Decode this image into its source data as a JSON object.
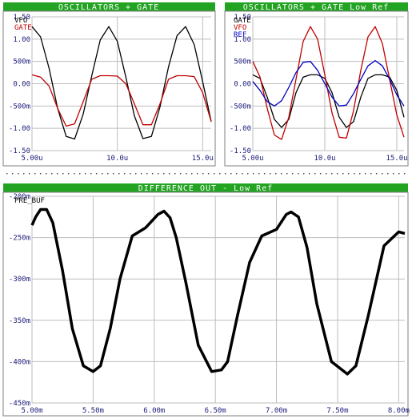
{
  "colors": {
    "title_bar": "#22a322",
    "title_text": "#ffffff",
    "tick_label": "#1a1a7a",
    "grid": "#bdbdbd",
    "frame": "#7f7f7f"
  },
  "chart_data": [
    {
      "id": "osc-gate",
      "type": "line",
      "title": "OSCILLATORS + GATE",
      "xlim": [
        5.0,
        15.5
      ],
      "ylim": [
        -1.5,
        1.5
      ],
      "xticks": [
        5.0,
        10.0,
        15.0
      ],
      "xtick_labels": [
        "5.00u",
        "10.0u",
        "15.0u"
      ],
      "yticks": [
        1.5,
        1.0,
        0.5,
        0.0,
        -0.5,
        -1.0,
        -1.5
      ],
      "ytick_labels": [
        "1.50",
        "1.00",
        "500m",
        "0.00",
        "-500m",
        "-1.00",
        "-1.50"
      ],
      "series": [
        {
          "name": "VFO",
          "color": "#000000",
          "x": [
            5.0,
            5.5,
            6.0,
            6.5,
            7.0,
            7.5,
            8.0,
            8.5,
            9.0,
            9.5,
            10.0,
            10.5,
            11.0,
            11.5,
            12.0,
            12.5,
            13.0,
            13.5,
            14.0,
            14.5,
            15.0,
            15.5
          ],
          "y": [
            1.28,
            1.05,
            0.35,
            -0.55,
            -1.18,
            -1.24,
            -0.68,
            0.18,
            0.98,
            1.28,
            0.95,
            0.15,
            -0.72,
            -1.23,
            -1.18,
            -0.52,
            0.38,
            1.08,
            1.28,
            0.88,
            0.05,
            -0.85
          ]
        },
        {
          "name": "GATE",
          "color": "#c00000",
          "x": [
            5.0,
            5.5,
            6.0,
            6.5,
            7.0,
            7.5,
            8.0,
            8.5,
            9.0,
            9.5,
            10.0,
            10.5,
            11.0,
            11.5,
            12.0,
            12.5,
            13.0,
            13.5,
            14.0,
            14.5,
            15.0,
            15.5
          ],
          "y": [
            0.2,
            0.15,
            -0.05,
            -0.55,
            -0.95,
            -0.9,
            -0.4,
            0.1,
            0.18,
            0.18,
            0.17,
            0.0,
            -0.45,
            -0.92,
            -0.92,
            -0.45,
            0.1,
            0.18,
            0.18,
            0.16,
            -0.2,
            -0.85
          ]
        }
      ]
    },
    {
      "id": "osc-gate-lowref",
      "type": "line",
      "title": "OSCILLATORS + GATE Low Ref",
      "xlim": [
        5.0,
        15.5
      ],
      "ylim": [
        -1.5,
        1.5
      ],
      "xticks": [
        5.0,
        10.0,
        15.0
      ],
      "xtick_labels": [
        "5.00u",
        "10.0u",
        "15.0u"
      ],
      "yticks": [
        1.5,
        1.0,
        0.5,
        0.0,
        -0.5,
        -1.0,
        -1.5
      ],
      "ytick_labels": [
        "1.50",
        "1.00",
        "500m",
        "0.00",
        "-500m",
        "-1.00",
        "-1.50"
      ],
      "series": [
        {
          "name": "GATE",
          "color": "#000000",
          "x": [
            5.0,
            5.5,
            6.0,
            6.5,
            7.0,
            7.5,
            8.0,
            8.5,
            9.0,
            9.5,
            10.0,
            10.5,
            11.0,
            11.5,
            12.0,
            12.5,
            13.0,
            13.5,
            14.0,
            14.5,
            15.0,
            15.5
          ],
          "y": [
            0.2,
            0.12,
            -0.3,
            -0.8,
            -0.98,
            -0.8,
            -0.2,
            0.15,
            0.2,
            0.2,
            0.12,
            -0.2,
            -0.75,
            -0.98,
            -0.85,
            -0.3,
            0.12,
            0.2,
            0.2,
            0.15,
            -0.15,
            -0.75
          ]
        },
        {
          "name": "VFO",
          "color": "#c00000",
          "x": [
            5.0,
            5.5,
            6.0,
            6.5,
            7.0,
            7.5,
            8.0,
            8.5,
            9.0,
            9.5,
            10.0,
            10.5,
            11.0,
            11.5,
            12.0,
            12.5,
            13.0,
            13.5,
            14.0,
            14.5,
            15.0,
            15.5
          ],
          "y": [
            0.5,
            0.15,
            -0.55,
            -1.15,
            -1.25,
            -0.75,
            0.1,
            0.95,
            1.28,
            1.0,
            0.2,
            -0.65,
            -1.2,
            -1.22,
            -0.6,
            0.3,
            1.05,
            1.28,
            0.9,
            0.1,
            -0.7,
            -1.2
          ]
        },
        {
          "name": "REF",
          "color": "#0000c0",
          "x": [
            5.0,
            5.5,
            6.0,
            6.5,
            7.0,
            7.5,
            8.0,
            8.5,
            9.0,
            9.5,
            10.0,
            10.5,
            11.0,
            11.5,
            12.0,
            12.5,
            13.0,
            13.5,
            14.0,
            14.5,
            15.0,
            15.5
          ],
          "y": [
            0.05,
            -0.15,
            -0.4,
            -0.5,
            -0.38,
            -0.08,
            0.25,
            0.48,
            0.5,
            0.3,
            0.0,
            -0.3,
            -0.5,
            -0.48,
            -0.22,
            0.1,
            0.4,
            0.52,
            0.4,
            0.1,
            -0.25,
            -0.5
          ]
        }
      ]
    },
    {
      "id": "diff-out",
      "type": "line",
      "title": "DIFFERENCE OUT - Low Ref",
      "xlim": [
        5.0,
        8.05
      ],
      "ylim": [
        -0.45,
        -0.2
      ],
      "xticks": [
        5.0,
        5.5,
        6.0,
        6.5,
        7.0,
        7.5,
        8.0
      ],
      "xtick_labels": [
        "5.00m",
        "5.50m",
        "6.00m",
        "6.50m",
        "7.00m",
        "7.50m",
        "8.00m"
      ],
      "yticks": [
        -0.2,
        -0.25,
        -0.3,
        -0.35,
        -0.4,
        -0.45
      ],
      "ytick_labels": [
        "-200m",
        "-250m",
        "-300m",
        "-350m",
        "-400m",
        "-450m"
      ],
      "series": [
        {
          "name": "PRE_BUF",
          "color": "#000000",
          "x": [
            5.0,
            5.03,
            5.07,
            5.12,
            5.17,
            5.25,
            5.33,
            5.42,
            5.5,
            5.56,
            5.64,
            5.72,
            5.82,
            5.93,
            6.03,
            6.08,
            6.13,
            6.18,
            6.26,
            6.36,
            6.47,
            6.55,
            6.6,
            6.68,
            6.78,
            6.88,
            7.0,
            7.08,
            7.12,
            7.18,
            7.25,
            7.33,
            7.45,
            7.58,
            7.65,
            7.75,
            7.88,
            8.0,
            8.05
          ],
          "y": [
            -0.235,
            -0.225,
            -0.216,
            -0.216,
            -0.232,
            -0.29,
            -0.36,
            -0.405,
            -0.412,
            -0.405,
            -0.36,
            -0.3,
            -0.248,
            -0.238,
            -0.222,
            -0.218,
            -0.226,
            -0.25,
            -0.305,
            -0.38,
            -0.412,
            -0.41,
            -0.4,
            -0.345,
            -0.28,
            -0.248,
            -0.24,
            -0.222,
            -0.219,
            -0.225,
            -0.262,
            -0.33,
            -0.4,
            -0.415,
            -0.405,
            -0.345,
            -0.26,
            -0.243,
            -0.245
          ]
        }
      ]
    }
  ]
}
